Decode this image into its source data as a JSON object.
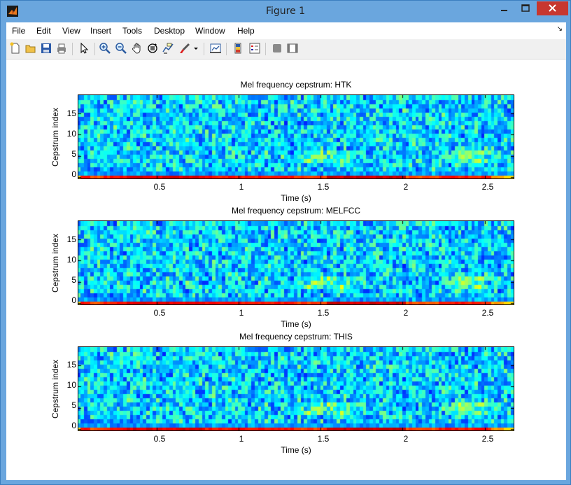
{
  "window": {
    "title": "Figure 1"
  },
  "menu": {
    "items": [
      "File",
      "Edit",
      "View",
      "Insert",
      "Tools",
      "Desktop",
      "Window",
      "Help"
    ],
    "overflow": "↘"
  },
  "toolbar": {
    "icons": [
      "new-figure-icon",
      "open-file-icon",
      "save-icon",
      "print-icon",
      "pointer-icon",
      "zoom-in-icon",
      "zoom-out-icon",
      "pan-icon",
      "rotate-3d-icon",
      "data-cursor-icon",
      "brush-icon",
      "link-plot-icon",
      "colorbar-icon",
      "legend-icon",
      "hide-plot-tools-icon",
      "show-plot-tools-icon"
    ]
  },
  "colors": {
    "titlebar": "#6aa6de",
    "close": "#c7372f",
    "colormap": "jet"
  },
  "chart_data": [
    {
      "type": "heatmap",
      "title": "Mel frequency cepstrum: HTK",
      "xlabel": "Time (s)",
      "ylabel": "Cepstrum index",
      "xlim": [
        0.02,
        2.68
      ],
      "ylim": [
        -0.5,
        19.5
      ],
      "xticks": [
        "0.5",
        "1",
        "1.5",
        "2",
        "2.5"
      ],
      "yticks": [
        "0",
        "5",
        "10",
        "15"
      ],
      "rows": 20,
      "cols": 133,
      "seed": 11
    },
    {
      "type": "heatmap",
      "title": "Mel frequency cepstrum: MELFCC",
      "xlabel": "Time (s)",
      "ylabel": "Cepstrum index",
      "xlim": [
        0.02,
        2.68
      ],
      "ylim": [
        -0.5,
        19.5
      ],
      "xticks": [
        "0.5",
        "1",
        "1.5",
        "2",
        "2.5"
      ],
      "yticks": [
        "0",
        "5",
        "10",
        "15"
      ],
      "rows": 20,
      "cols": 133,
      "seed": 23
    },
    {
      "type": "heatmap",
      "title": "Mel frequency cepstrum: THIS",
      "xlabel": "Time (s)",
      "ylabel": "Cepstrum index",
      "xlim": [
        0.02,
        2.68
      ],
      "ylim": [
        -0.5,
        19.5
      ],
      "xticks": [
        "0.5",
        "1",
        "1.5",
        "2",
        "2.5"
      ],
      "yticks": [
        "0",
        "5",
        "10",
        "15"
      ],
      "rows": 20,
      "cols": 133,
      "seed": 37
    }
  ]
}
